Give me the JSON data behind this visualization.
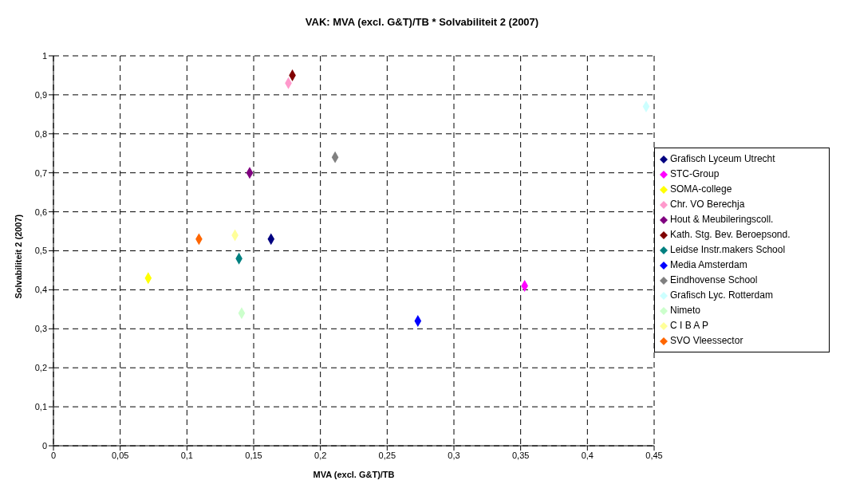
{
  "chart_data": {
    "type": "scatter",
    "title": "VAK: MVA (excl. G&T)/TB * Solvabiliteit 2 (2007)",
    "xlabel": "MVA (excl. G&T)/TB",
    "ylabel": "Solvabiliteit 2 (2007)",
    "xlim": [
      0,
      0.45
    ],
    "xticks": [
      0,
      {
        "value": 0.05,
        "label": "0,05"
      },
      {
        "value": 0.1,
        "label": "0,1"
      },
      {
        "value": 0.15,
        "label": "0,15"
      },
      {
        "value": 0.2,
        "label": "0,2"
      },
      {
        "value": 0.25,
        "label": "0,25"
      },
      {
        "value": 0.3,
        "label": "0,3"
      },
      {
        "value": 0.35,
        "label": "0,35"
      },
      {
        "value": 0.4,
        "label": "0,4"
      },
      {
        "value": 0.45,
        "label": "0,45"
      }
    ],
    "ylim": [
      0,
      1
    ],
    "yticks": [
      0,
      {
        "value": 0.1,
        "label": "0,1"
      },
      {
        "value": 0.2,
        "label": "0,2"
      },
      {
        "value": 0.3,
        "label": "0,3"
      },
      {
        "value": 0.4,
        "label": "0,4"
      },
      {
        "value": 0.5,
        "label": "0,5"
      },
      {
        "value": 0.6,
        "label": "0,6"
      },
      {
        "value": 0.7,
        "label": "0,7"
      },
      {
        "value": 0.8,
        "label": "0,8"
      },
      {
        "value": 0.9,
        "label": "0,9"
      },
      1
    ],
    "grid": true,
    "legend": "right",
    "marker": "diamond",
    "series": [
      {
        "name": "Grafisch Lyceum Utrecht",
        "color": "#000080",
        "x": [
          0.163
        ],
        "values": [
          0.53
        ]
      },
      {
        "name": "STC-Group",
        "color": "#ff00ff",
        "x": [
          0.353
        ],
        "values": [
          0.41
        ]
      },
      {
        "name": "SOMA-college",
        "color": "#ffff00",
        "x": [
          0.071
        ],
        "values": [
          0.43
        ]
      },
      {
        "name": "Chr. VO Berechja",
        "color": "#ff99cc",
        "x": [
          0.176
        ],
        "values": [
          0.93
        ]
      },
      {
        "name": "Hout & Meubileringscoll.",
        "color": "#800080",
        "x": [
          0.147
        ],
        "values": [
          0.7
        ]
      },
      {
        "name": "Kath. Stg. Bev. Beroepsond.",
        "color": "#800000",
        "x": [
          0.179
        ],
        "values": [
          0.95
        ]
      },
      {
        "name": "Leidse Instr.makers School",
        "color": "#008080",
        "x": [
          0.139
        ],
        "values": [
          0.48
        ]
      },
      {
        "name": "Media Amsterdam",
        "color": "#0000ff",
        "x": [
          0.273
        ],
        "values": [
          0.32
        ]
      },
      {
        "name": "Eindhovense School",
        "color": "#808080",
        "x": [
          0.211
        ],
        "values": [
          0.74
        ]
      },
      {
        "name": "Grafisch Lyc. Rotterdam",
        "color": "#ccffff",
        "x": [
          0.444
        ],
        "values": [
          0.87
        ]
      },
      {
        "name": "Nimeto",
        "color": "#ccffcc",
        "x": [
          0.141
        ],
        "values": [
          0.34
        ]
      },
      {
        "name": "C I B A P",
        "color": "#ffff99",
        "x": [
          0.136
        ],
        "values": [
          0.54
        ]
      },
      {
        "name": "SVO Vleessector",
        "color": "#ff6600",
        "x": [
          0.109
        ],
        "values": [
          0.53
        ]
      }
    ]
  }
}
